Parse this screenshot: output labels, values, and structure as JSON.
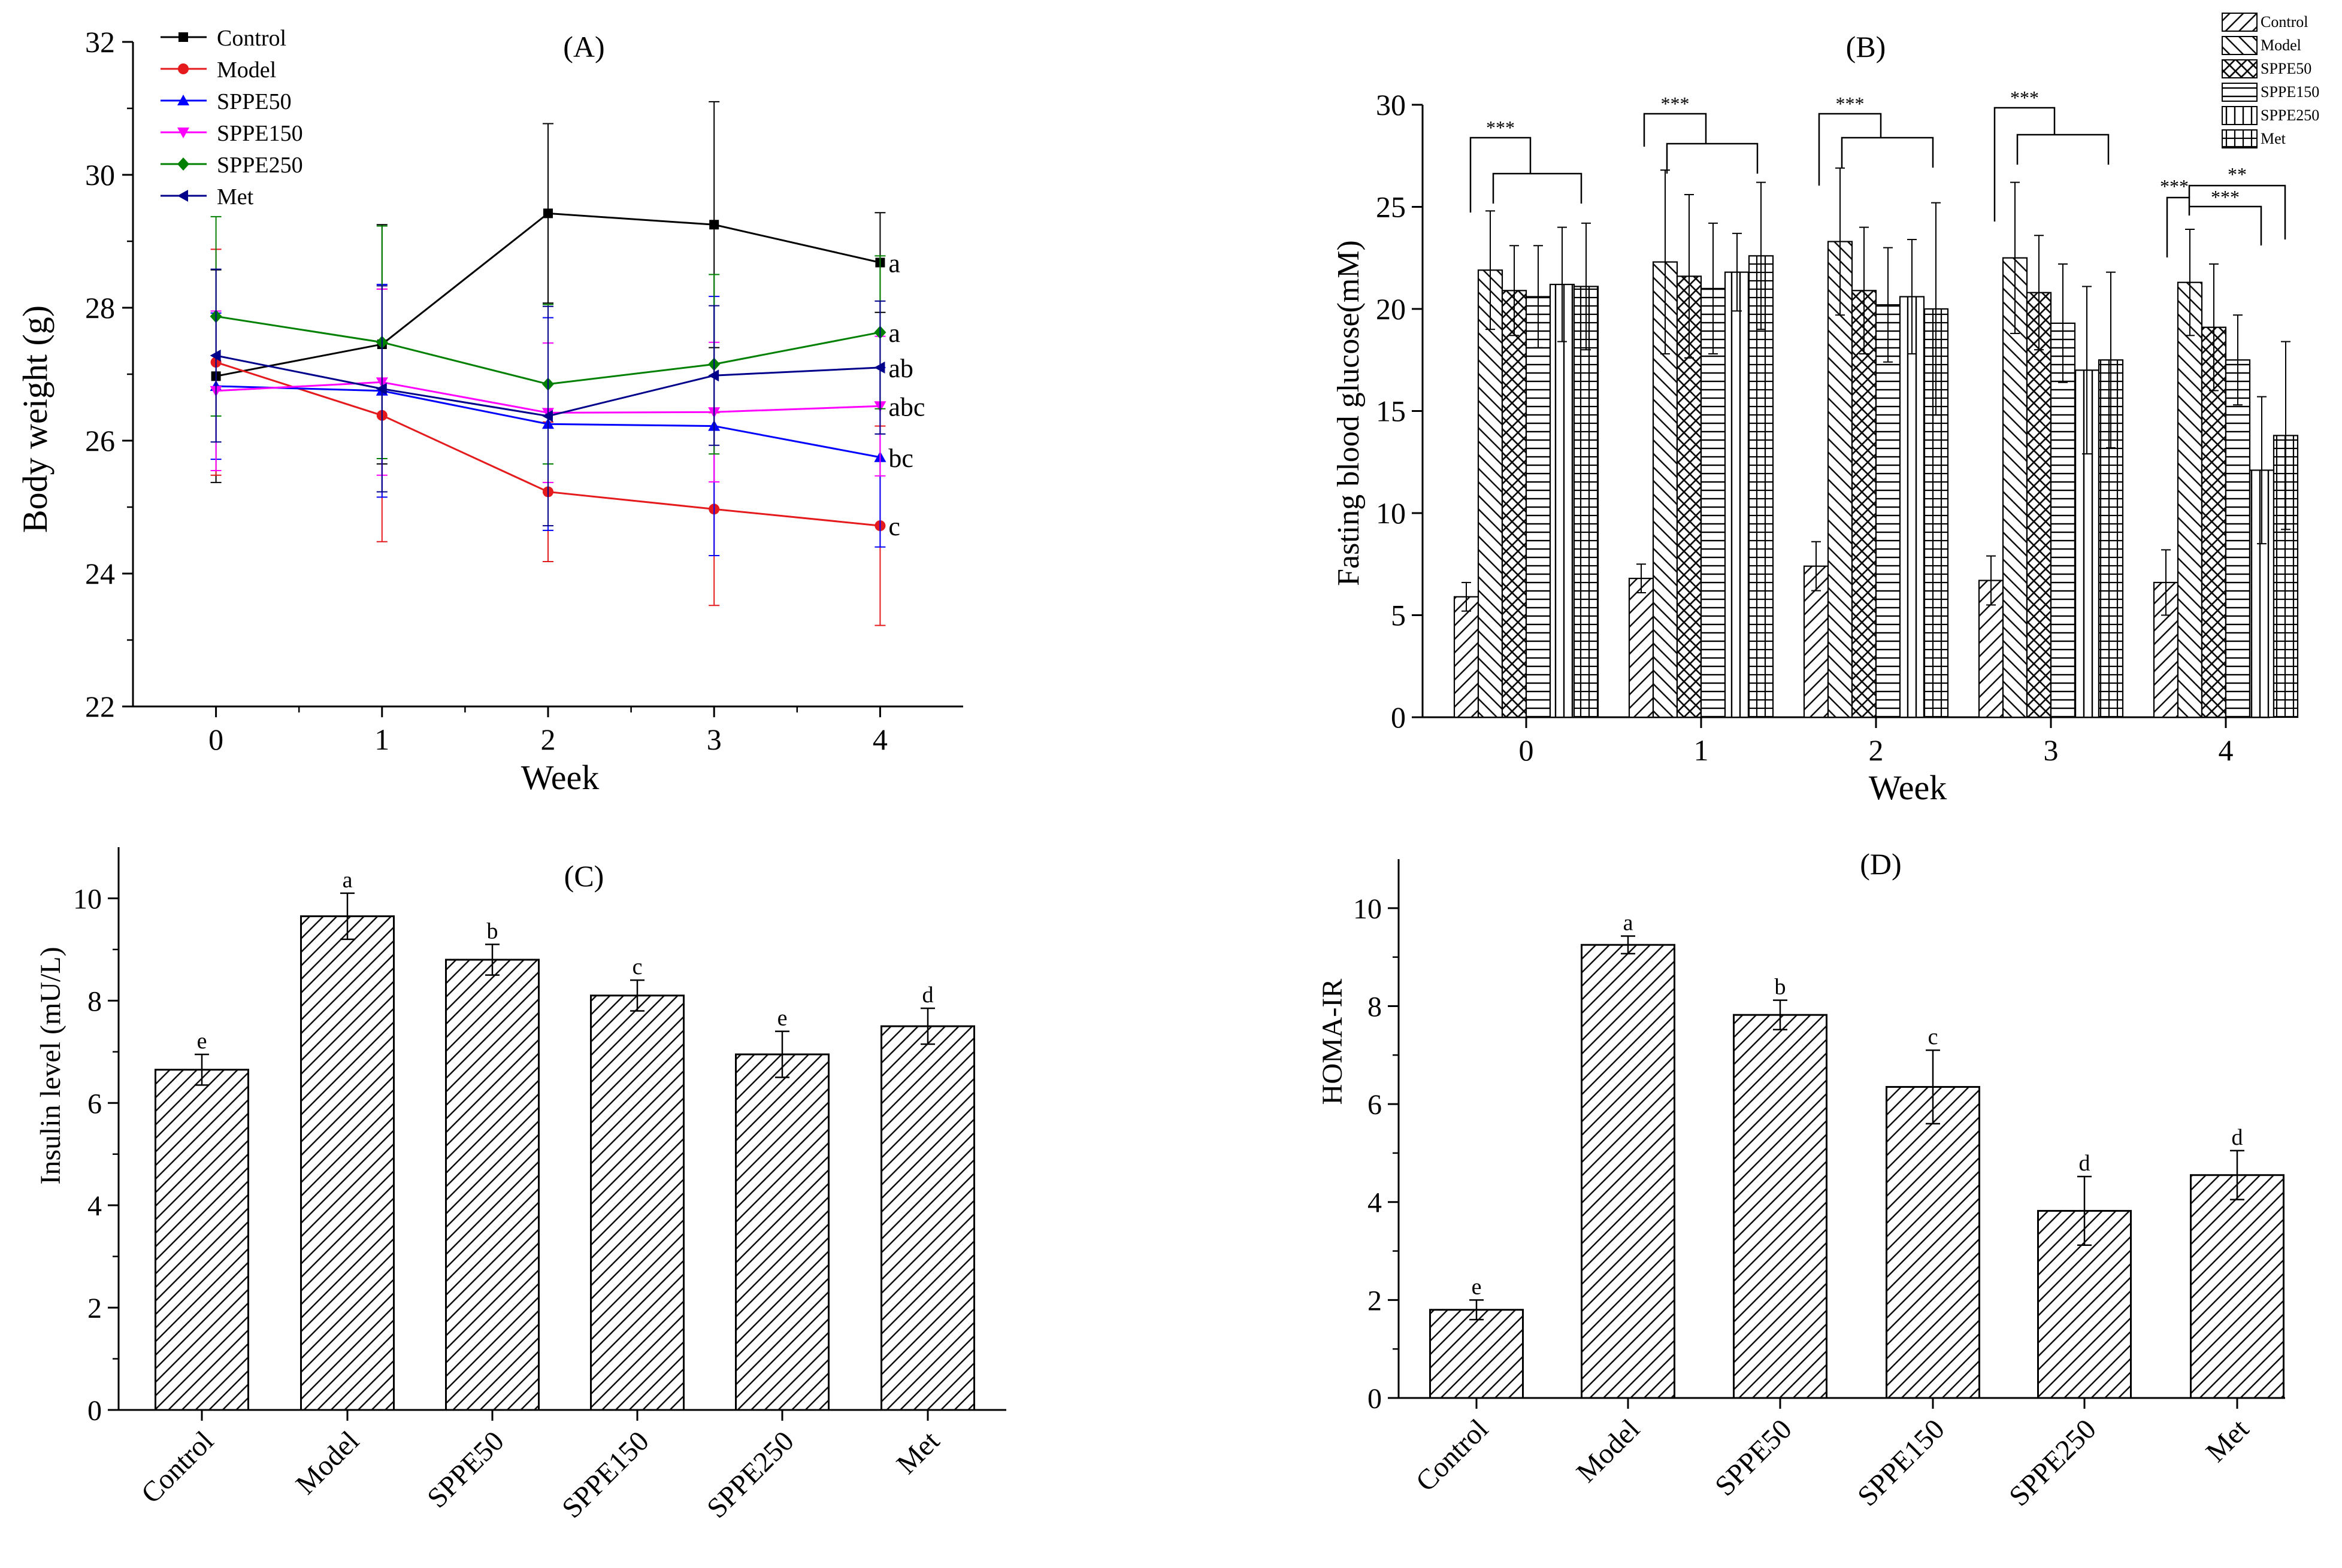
{
  "chart_data": [
    {
      "panel": "(A)",
      "type": "line",
      "xlabel": "Week",
      "ylabel": "Body weight (g)",
      "x": [
        0,
        1,
        2,
        3,
        4
      ],
      "xlim": [
        -0.5,
        4.5
      ],
      "ylim": [
        22,
        32
      ],
      "yticks": [
        22,
        24,
        26,
        28,
        30,
        32
      ],
      "legend_position": "top-left",
      "grid": false,
      "series": [
        {
          "name": "Control",
          "color": "#000000",
          "marker": "square",
          "values": [
            26.97,
            27.45,
            29.42,
            29.25,
            28.68
          ],
          "errors": [
            1.6,
            1.8,
            1.35,
            1.85,
            0.75
          ],
          "label": "a"
        },
        {
          "name": "Model",
          "color": "#e41a1c",
          "marker": "circle",
          "values": [
            27.18,
            26.38,
            25.23,
            24.97,
            24.72
          ],
          "errors": [
            1.7,
            1.9,
            1.05,
            1.45,
            1.5
          ],
          "label": "c"
        },
        {
          "name": "SPPE50",
          "color": "#0000ff",
          "marker": "triangle-up",
          "values": [
            26.82,
            26.75,
            26.25,
            26.22,
            25.75
          ],
          "errors": [
            1.1,
            1.6,
            1.6,
            1.95,
            1.35
          ],
          "label": "bc"
        },
        {
          "name": "SPPE150",
          "color": "#ff00ff",
          "marker": "triangle-down",
          "values": [
            26.75,
            26.88,
            26.42,
            26.43,
            26.52
          ],
          "errors": [
            1.2,
            1.4,
            1.05,
            1.05,
            1.05
          ],
          "label": "abc"
        },
        {
          "name": "SPPE250",
          "color": "#008000",
          "marker": "diamond",
          "values": [
            27.87,
            27.48,
            26.85,
            27.15,
            27.63
          ],
          "errors": [
            1.5,
            1.75,
            1.2,
            1.35,
            1.15
          ],
          "label": "a"
        },
        {
          "name": "Met",
          "color": "#00008b",
          "marker": "triangle-left",
          "values": [
            27.28,
            26.78,
            26.37,
            26.98,
            27.1
          ],
          "errors": [
            1.3,
            1.55,
            1.65,
            1.05,
            1.0
          ],
          "label": "ab"
        }
      ]
    },
    {
      "panel": "(B)",
      "type": "bar",
      "xlabel": "Week",
      "ylabel": "Fasting blood glucose(mM)",
      "categories": [
        "0",
        "1",
        "2",
        "3",
        "4"
      ],
      "ylim": [
        0,
        30
      ],
      "yticks": [
        0,
        5,
        10,
        15,
        20,
        25,
        30
      ],
      "legend_position": "top-right",
      "series": [
        {
          "name": "Control",
          "values": [
            5.9,
            6.8,
            7.4,
            6.7,
            6.6
          ],
          "errors": [
            0.7,
            0.7,
            1.2,
            1.2,
            1.6
          ]
        },
        {
          "name": "Model",
          "values": [
            21.9,
            22.3,
            23.3,
            22.5,
            21.3
          ],
          "errors": [
            2.9,
            4.5,
            3.6,
            3.7,
            2.6
          ]
        },
        {
          "name": "SPPE50",
          "values": [
            20.9,
            21.6,
            20.9,
            20.8,
            19.1
          ],
          "errors": [
            2.2,
            4.0,
            3.1,
            2.8,
            3.1
          ]
        },
        {
          "name": "SPPE150",
          "values": [
            20.6,
            21.0,
            20.2,
            19.3,
            17.5
          ],
          "errors": [
            2.5,
            3.2,
            2.8,
            2.9,
            2.2
          ]
        },
        {
          "name": "SPPE250",
          "values": [
            21.2,
            21.8,
            20.6,
            17.0,
            12.1
          ],
          "errors": [
            2.8,
            1.9,
            2.8,
            4.1,
            3.6
          ]
        },
        {
          "name": "Met",
          "values": [
            21.1,
            22.6,
            20.0,
            17.5,
            13.8
          ],
          "errors": [
            3.1,
            3.6,
            5.2,
            4.3,
            4.6
          ]
        }
      ],
      "annotations": [
        "***",
        "***",
        "***",
        "***",
        "***",
        "**",
        "***"
      ]
    },
    {
      "panel": "(C)",
      "type": "bar",
      "ylabel": "Insulin level (mU/L)",
      "categories": [
        "Control",
        "Model",
        "SPPE50",
        "SPPE150",
        "SPPE250",
        "Met"
      ],
      "values": [
        6.65,
        9.65,
        8.8,
        8.1,
        6.95,
        7.5
      ],
      "errors": [
        0.3,
        0.45,
        0.3,
        0.3,
        0.45,
        0.35
      ],
      "labels": [
        "e",
        "a",
        "b",
        "c",
        "e",
        "d"
      ],
      "ylim": [
        0,
        11
      ],
      "yticks": [
        0,
        2,
        4,
        6,
        8,
        10
      ]
    },
    {
      "panel": "(D)",
      "type": "bar",
      "ylabel": "HOMA-IR",
      "categories": [
        "Control",
        "Model",
        "SPPE50",
        "SPPE150",
        "SPPE250",
        "Met"
      ],
      "values": [
        1.8,
        9.25,
        7.82,
        6.35,
        3.82,
        4.55
      ],
      "errors": [
        0.2,
        0.18,
        0.3,
        0.75,
        0.7,
        0.5
      ],
      "labels": [
        "e",
        "a",
        "b",
        "c",
        "d",
        "d"
      ],
      "ylim": [
        0,
        11
      ],
      "yticks": [
        0,
        2,
        4,
        6,
        8,
        10
      ]
    }
  ]
}
